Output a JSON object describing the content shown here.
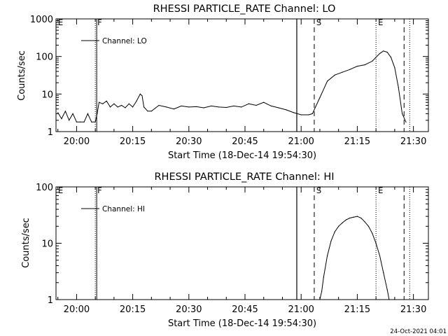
{
  "chart_data": [
    {
      "type": "line",
      "title": "RHESSI PARTICLE_RATE Channel: LO",
      "xlabel": "Start Time (18-Dec-14 19:54:30)",
      "ylabel": "Counts/sec",
      "y_scale": "log",
      "ylim": [
        1,
        1000
      ],
      "yticks": [
        1,
        10,
        100,
        1000
      ],
      "ytick_labels": [
        "1",
        "10",
        "100",
        "1000"
      ],
      "xlim": [
        "19:54:30",
        "21:34:00"
      ],
      "xticks": [
        "20:00",
        "20:15",
        "20:30",
        "20:45",
        "21:00",
        "21:15",
        "21:30"
      ],
      "grid": false,
      "legend": {
        "position": "top-left",
        "entries": [
          "Channel: LO"
        ]
      },
      "series": [
        {
          "name": "Channel: LO",
          "x": [
            "19:55:00",
            "19:56:00",
            "19:57:00",
            "19:58:00",
            "19:59:00",
            "20:00:00",
            "20:01:00",
            "20:02:00",
            "20:03:00",
            "20:04:00",
            "20:05:00",
            "20:05:30",
            "20:06:00",
            "20:07:00",
            "20:08:00",
            "20:09:00",
            "20:10:00",
            "20:11:00",
            "20:12:00",
            "20:13:00",
            "20:14:00",
            "20:15:00",
            "20:16:00",
            "20:17:00",
            "20:17:30",
            "20:18:00",
            "20:19:00",
            "20:20:00",
            "20:21:00",
            "20:22:00",
            "20:24:00",
            "20:26:00",
            "20:28:00",
            "20:30:00",
            "20:32:00",
            "20:34:00",
            "20:36:00",
            "20:38:00",
            "20:40:00",
            "20:42:00",
            "20:44:00",
            "20:46:00",
            "20:48:00",
            "20:50:00",
            "20:52:00",
            "20:54:00",
            "20:56:00",
            "20:58:00",
            "21:00:00",
            "21:02:00",
            "21:03:00",
            "21:05:00",
            "21:07:00",
            "21:09:00",
            "21:11:00",
            "21:13:00",
            "21:15:00",
            "21:17:00",
            "21:19:00",
            "21:20:00",
            "21:21:00",
            "21:22:00",
            "21:23:00",
            "21:24:00",
            "21:25:00",
            "21:26:00",
            "21:27:00",
            "21:28:00"
          ],
          "values": [
            3.2,
            2.2,
            3.5,
            2.0,
            3.0,
            1.8,
            1.8,
            1.8,
            3.0,
            1.8,
            1.8,
            3.0,
            6.0,
            5.5,
            6.5,
            4.5,
            5.5,
            4.5,
            5.0,
            4.3,
            5.5,
            4.5,
            6.5,
            10.0,
            9.0,
            4.5,
            3.5,
            3.5,
            4.2,
            5.0,
            4.5,
            4.0,
            4.8,
            4.5,
            4.6,
            4.3,
            4.8,
            4.5,
            4.4,
            4.8,
            4.5,
            5.5,
            5.0,
            6.0,
            4.8,
            4.3,
            3.8,
            3.2,
            2.8,
            2.8,
            3.0,
            8.0,
            22.0,
            32.0,
            38.0,
            45.0,
            55.0,
            60.0,
            75.0,
            95.0,
            120.0,
            140.0,
            130.0,
            95.0,
            50.0,
            15.0,
            3.0,
            1.8
          ]
        }
      ],
      "annotations": [
        {
          "label": "E",
          "x": "19:54:30",
          "style": "dotted"
        },
        {
          "label": "F",
          "x": "20:05:00",
          "style": "dotted+solid"
        },
        {
          "label": "",
          "x": "20:58:50",
          "style": "solid"
        },
        {
          "label": "S",
          "x": "21:03:30",
          "style": "dashed"
        },
        {
          "label": "E",
          "x": "21:20:00",
          "style": "dotted"
        },
        {
          "label": "",
          "x": "21:27:30",
          "style": "dashed"
        },
        {
          "label": "",
          "x": "21:29:00",
          "style": "dotted"
        }
      ]
    },
    {
      "type": "line",
      "title": "RHESSI PARTICLE_RATE Channel: HI",
      "xlabel": "Start Time (18-Dec-14 19:54:30)",
      "ylabel": "Counts/sec",
      "y_scale": "log",
      "ylim": [
        1,
        100
      ],
      "yticks": [
        1,
        10,
        100
      ],
      "ytick_labels": [
        "1",
        "10",
        "100"
      ],
      "xlim": [
        "19:54:30",
        "21:34:00"
      ],
      "xticks": [
        "20:00",
        "20:15",
        "20:30",
        "20:45",
        "21:00",
        "21:15",
        "21:30"
      ],
      "grid": false,
      "legend": {
        "position": "top-left",
        "entries": [
          "Channel: HI"
        ]
      },
      "series": [
        {
          "name": "Channel: HI",
          "x": [
            "21:05:00",
            "21:05:30",
            "21:06:00",
            "21:07:00",
            "21:08:00",
            "21:09:00",
            "21:10:00",
            "21:11:00",
            "21:12:00",
            "21:13:00",
            "21:14:00",
            "21:15:00",
            "21:16:00",
            "21:17:00",
            "21:18:00",
            "21:19:00",
            "21:20:00",
            "21:21:00",
            "21:22:00",
            "21:23:00",
            "21:23:30"
          ],
          "values": [
            1.0,
            1.4,
            2.5,
            6.0,
            11.0,
            16.0,
            20.0,
            23.0,
            26.0,
            28.0,
            29.0,
            30.0,
            28.0,
            24.0,
            20.0,
            15.0,
            10.0,
            6.0,
            3.0,
            1.5,
            1.0
          ]
        }
      ],
      "annotations": [
        {
          "label": "E",
          "x": "19:54:30",
          "style": "dotted"
        },
        {
          "label": "F",
          "x": "20:05:00",
          "style": "dotted+solid"
        },
        {
          "label": "",
          "x": "20:58:50",
          "style": "solid"
        },
        {
          "label": "S",
          "x": "21:03:30",
          "style": "dashed"
        },
        {
          "label": "E",
          "x": "21:20:00",
          "style": "dotted"
        },
        {
          "label": "",
          "x": "21:27:30",
          "style": "dashed"
        },
        {
          "label": "",
          "x": "21:29:00",
          "style": "dotted"
        }
      ]
    }
  ],
  "footer": {
    "timestamp": "24-Oct-2021 04:01"
  }
}
